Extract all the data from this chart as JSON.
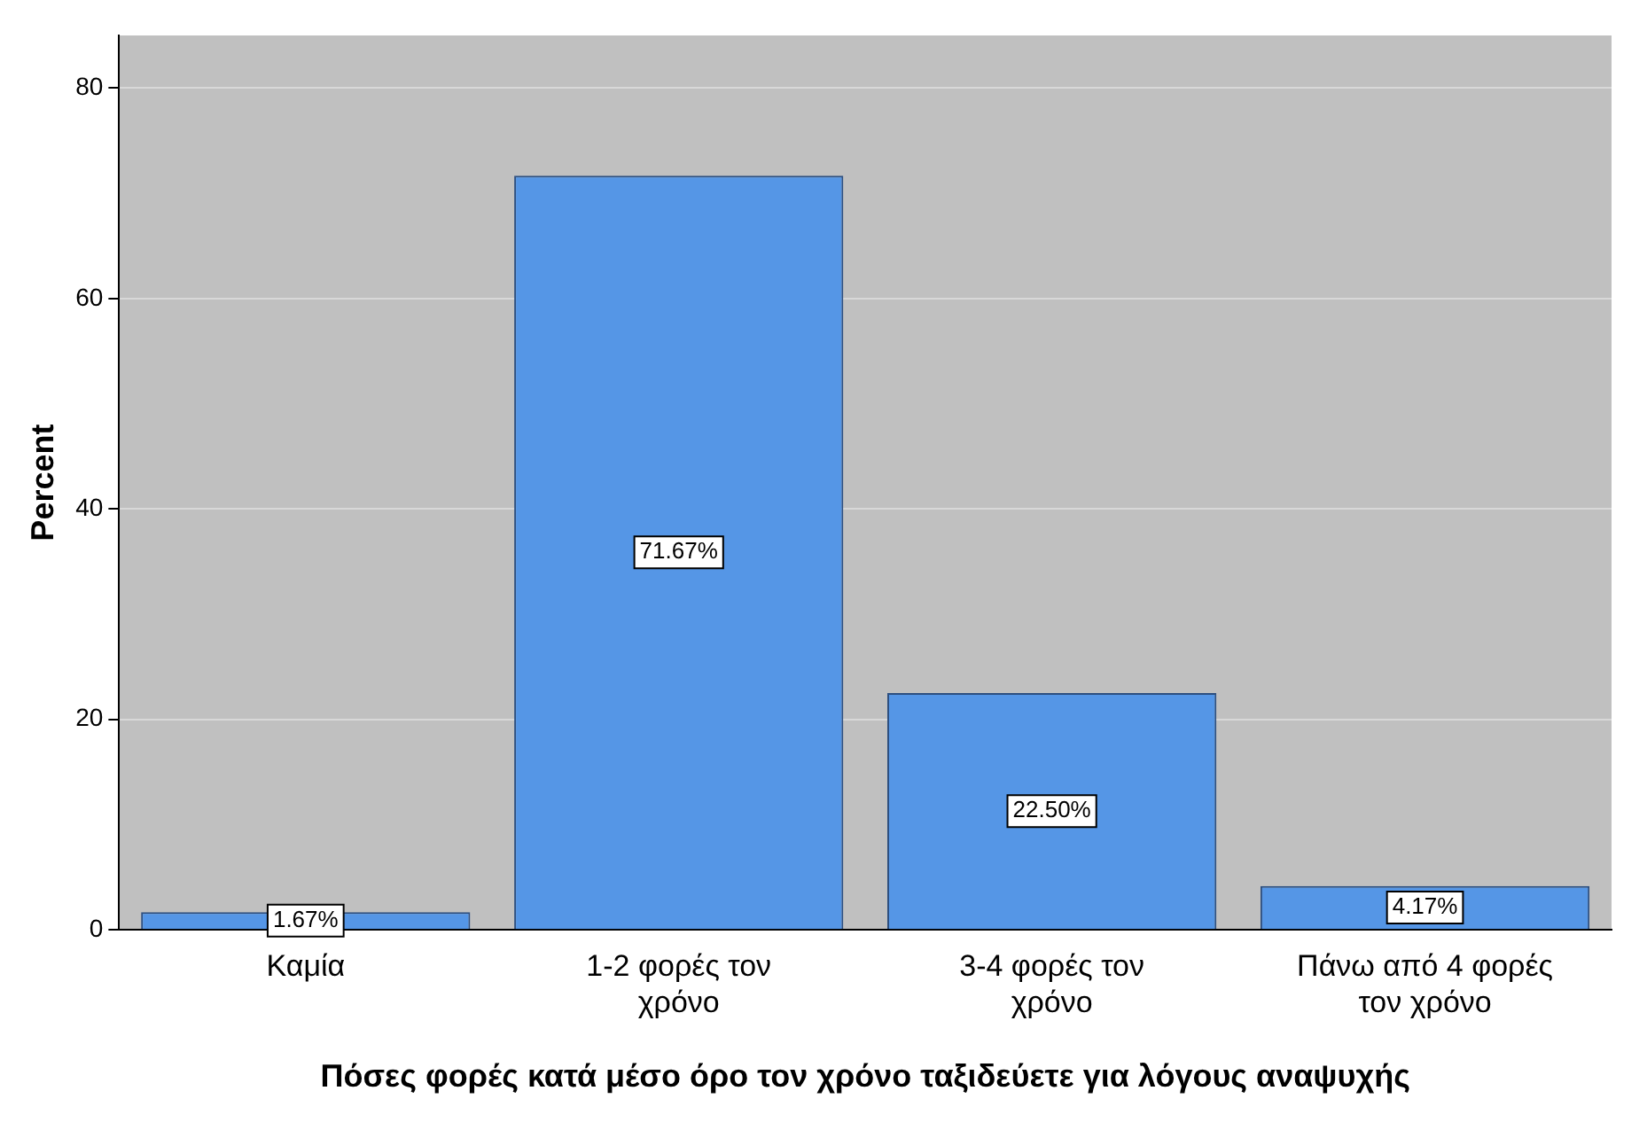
{
  "chart_data": {
    "type": "bar",
    "xlabel": "Πόσες φορές κατά μέσο όρο τον χρόνο ταξιδεύετε για λόγους αναψυχής",
    "ylabel": "Percent",
    "categories": [
      "Καμία",
      "1-2 φορές τον χρόνο",
      "3-4 φορές τον χρόνο",
      "Πάνω από 4 φορές τον χρόνο"
    ],
    "values": [
      1.67,
      71.67,
      22.5,
      4.17
    ],
    "color": "#5596e6",
    "value_labels": [
      "1.67%",
      "71.67%",
      "22.50%",
      "4.17%"
    ],
    "ylim": [
      0,
      85
    ],
    "yticks": [
      0,
      20,
      40,
      60,
      80
    ],
    "grid": "y",
    "legend": false
  }
}
